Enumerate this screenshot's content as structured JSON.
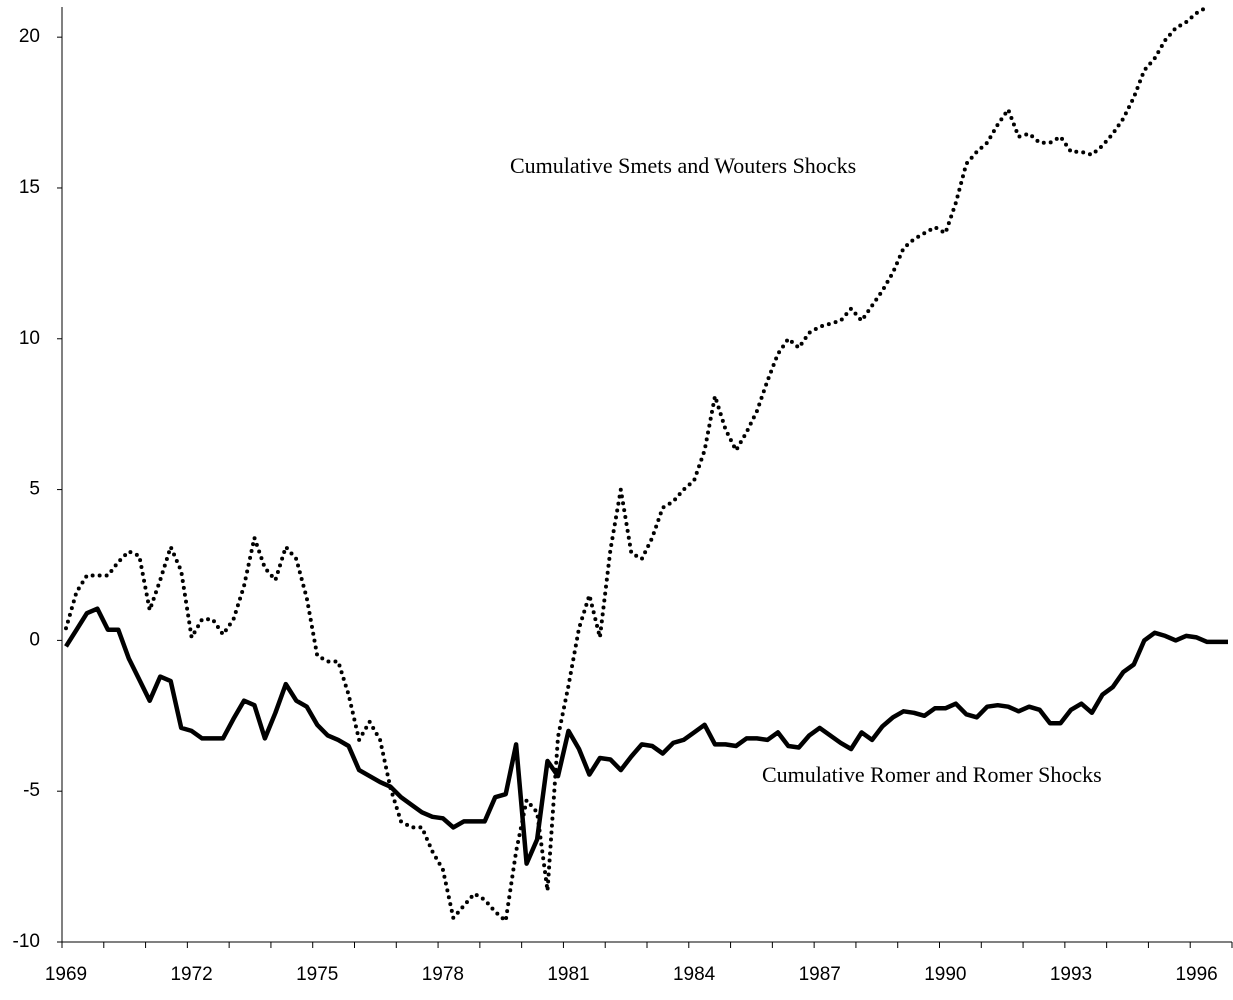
{
  "chart_data": {
    "type": "line",
    "categories": [
      "1969",
      null,
      null,
      null,
      null,
      null,
      null,
      null,
      null,
      null,
      null,
      null,
      "1972",
      null,
      null,
      null,
      null,
      null,
      null,
      null,
      null,
      null,
      null,
      null,
      "1975",
      null,
      null,
      null,
      null,
      null,
      null,
      null,
      null,
      null,
      null,
      null,
      "1978",
      null,
      null,
      null,
      null,
      null,
      null,
      null,
      null,
      null,
      null,
      null,
      "1981",
      null,
      null,
      null,
      null,
      null,
      null,
      null,
      null,
      null,
      null,
      null,
      "1984",
      null,
      null,
      null,
      null,
      null,
      null,
      null,
      null,
      null,
      null,
      null,
      "1987",
      null,
      null,
      null,
      null,
      null,
      null,
      null,
      null,
      null,
      null,
      null,
      "1990",
      null,
      null,
      null,
      null,
      null,
      null,
      null,
      null,
      null,
      null,
      null,
      "1993",
      null,
      null,
      null,
      null,
      null,
      null,
      null,
      null,
      null,
      null,
      null,
      "1996",
      null,
      null,
      null
    ],
    "series": [
      {
        "color": "#000000",
        "style": "solid",
        "values": [
          -0.2,
          0.35,
          0.9,
          1.05,
          0.35,
          0.35,
          -0.6,
          -1.3,
          -2.0,
          -1.2,
          -1.35,
          -2.9,
          -3.0,
          -3.25,
          -3.25,
          -3.25,
          -2.6,
          -2.0,
          -2.15,
          -3.25,
          -2.4,
          -1.45,
          -2.0,
          -2.2,
          -2.8,
          -3.15,
          -3.3,
          -3.5,
          -4.3,
          -4.5,
          -4.7,
          -4.85,
          -5.2,
          -5.45,
          -5.7,
          -5.85,
          -5.9,
          -6.2,
          -6.0,
          -6.0,
          -6.0,
          -5.2,
          -5.1,
          -3.45,
          -7.4,
          -6.6,
          -4.0,
          -4.5,
          -3.0,
          -3.6,
          -4.45,
          -3.9,
          -3.95,
          -4.3,
          -3.85,
          -3.45,
          -3.5,
          -3.75,
          -3.4,
          -3.3,
          -3.05,
          -2.8,
          -3.45,
          -3.45,
          -3.5,
          -3.25,
          -3.25,
          -3.3,
          -3.05,
          -3.5,
          -3.55,
          -3.15,
          -2.9,
          -3.15,
          -3.4,
          -3.6,
          -3.05,
          -3.3,
          -2.85,
          -2.55,
          -2.35,
          -2.4,
          -2.5,
          -2.25,
          -2.25,
          -2.1,
          -2.45,
          -2.55,
          -2.2,
          -2.15,
          -2.2,
          -2.35,
          -2.2,
          -2.3,
          -2.75,
          -2.75,
          -2.3,
          -2.1,
          -2.4,
          -1.8,
          -1.55,
          -1.05,
          -0.8,
          0.0,
          0.25,
          0.15,
          0.0,
          0.15,
          0.1,
          -0.05,
          -0.05,
          -0.05
        ]
      },
      {
        "color": "#000000",
        "style": "dotted",
        "values": [
          0.4,
          1.6,
          2.15,
          2.15,
          2.15,
          2.6,
          2.95,
          2.8,
          1.0,
          2.0,
          3.1,
          2.3,
          0.1,
          0.7,
          0.7,
          0.2,
          0.7,
          1.8,
          3.4,
          2.4,
          2.0,
          3.1,
          2.7,
          1.4,
          -0.5,
          -0.7,
          -0.7,
          -1.8,
          -3.3,
          -2.7,
          -3.3,
          -4.9,
          -6.0,
          -6.2,
          -6.2,
          -7.0,
          -7.6,
          -9.2,
          -8.8,
          -8.4,
          -8.6,
          -9.0,
          -9.3,
          -7.0,
          -5.3,
          -5.7,
          -8.3,
          -3.2,
          -1.5,
          0.4,
          1.5,
          0.1,
          3.0,
          5.0,
          2.9,
          2.7,
          3.4,
          4.4,
          4.6,
          5.0,
          5.3,
          6.3,
          8.1,
          7.0,
          6.3,
          6.9,
          7.6,
          8.6,
          9.5,
          10.0,
          9.7,
          10.2,
          10.4,
          10.5,
          10.6,
          11.0,
          10.6,
          11.1,
          11.6,
          12.2,
          13.0,
          13.3,
          13.5,
          13.7,
          13.5,
          14.5,
          15.8,
          16.2,
          16.5,
          17.1,
          17.6,
          16.7,
          16.8,
          16.5,
          16.5,
          16.7,
          16.2,
          16.2,
          16.1,
          16.4,
          16.8,
          17.3,
          18.0,
          18.9,
          19.3,
          19.9,
          20.3,
          20.5,
          20.8,
          21.0,
          null,
          null
        ]
      }
    ],
    "annotations": [
      {
        "text": "Cumulative Smets and Wouters Shocks"
      },
      {
        "text": "Cumulative Romer and Romer Shocks"
      }
    ],
    "ylim": [
      -10,
      21
    ],
    "yticks": [
      -10,
      -5,
      0,
      5,
      10,
      15,
      20
    ]
  }
}
